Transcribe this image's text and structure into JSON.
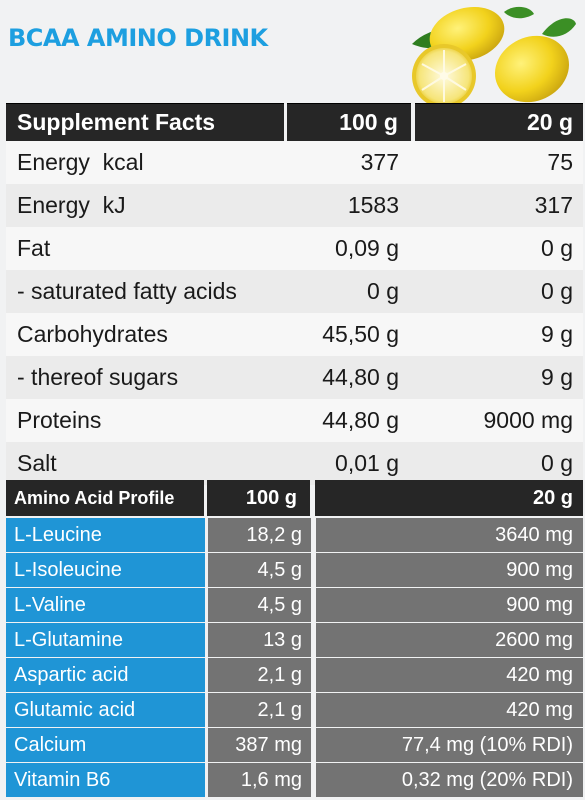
{
  "header": {
    "title": "BCAA AMINO DRINK",
    "image_icon": "lemons-illustration"
  },
  "facts": {
    "headers": [
      "Supplement Facts",
      "100 g",
      "20 g"
    ],
    "rows": [
      {
        "label": "Energy  kcal",
        "per100": "377",
        "per20": "75"
      },
      {
        "label": "Energy  kJ",
        "per100": "1583",
        "per20": "317"
      },
      {
        "label": "Fat",
        "per100": "0,09 g",
        "per20": "0 g"
      },
      {
        "label": "- saturated fatty acids",
        "per100": "0 g",
        "per20": "0 g"
      },
      {
        "label": "Carbohydrates",
        "per100": "45,50 g",
        "per20": "9 g"
      },
      {
        "label": "- thereof sugars",
        "per100": "44,80 g",
        "per20": "9 g"
      },
      {
        "label": "Proteins",
        "per100": "44,80 g",
        "per20": "9000 mg"
      },
      {
        "label": "Salt",
        "per100": "0,01 g",
        "per20": "0 g"
      }
    ]
  },
  "amino": {
    "headers": [
      "Amino Acid Profile",
      "100 g",
      "20 g"
    ],
    "rows": [
      {
        "label": "L-Leucine",
        "per100": "18,2 g",
        "per20": "3640 mg"
      },
      {
        "label": "L-Isoleucine",
        "per100": "4,5 g",
        "per20": "900 mg"
      },
      {
        "label": "L-Valine",
        "per100": "4,5 g",
        "per20": "900 mg"
      },
      {
        "label": "L-Glutamine",
        "per100": "13 g",
        "per20": "2600 mg"
      },
      {
        "label": "Aspartic acid",
        "per100": "2,1 g",
        "per20": "420 mg"
      },
      {
        "label": "Glutamic acid",
        "per100": "2,1 g",
        "per20": "420 mg"
      },
      {
        "label": "Calcium",
        "per100": "387 mg",
        "per20": "77,4 mg (10% RDI)"
      },
      {
        "label": "Vitamin B6",
        "per100": "1,6 mg",
        "per20": "0,32 mg (20% RDI)"
      }
    ]
  },
  "colors": {
    "accent_blue": "#1f95d6",
    "title_blue": "#1d9fe0",
    "header_dark": "#262626",
    "cell_gray": "#737373"
  }
}
